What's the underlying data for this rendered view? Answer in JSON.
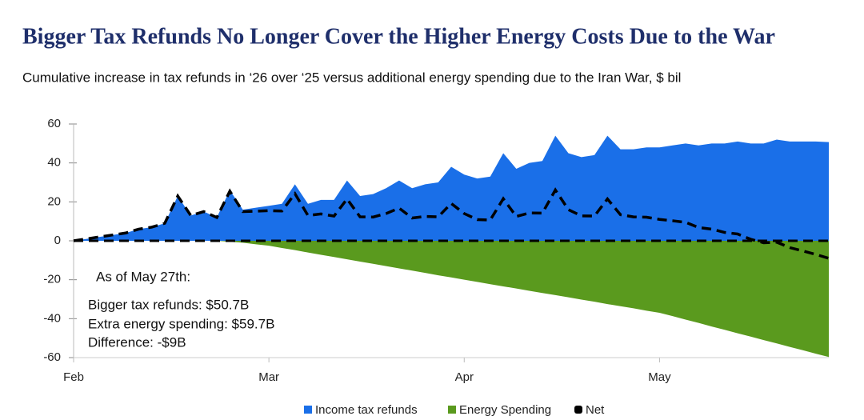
{
  "chart_data": {
    "type": "area",
    "title": "Bigger Tax Refunds No Longer Cover the Higher Energy Costs Due to the War",
    "subtitle": "Cumulative increase in tax refunds in ‘26 over ‘25 versus additional energy spending due to the Iran War, $ bil",
    "categories": [
      "Feb",
      null,
      null,
      null,
      null,
      null,
      null,
      null,
      null,
      null,
      null,
      null,
      null,
      null,
      null,
      "Mar",
      null,
      null,
      null,
      null,
      null,
      null,
      null,
      null,
      null,
      null,
      null,
      null,
      null,
      null,
      "Apr",
      null,
      null,
      null,
      null,
      null,
      null,
      null,
      null,
      null,
      null,
      null,
      null,
      null,
      null,
      "May",
      null,
      null,
      null,
      null,
      null,
      null,
      null,
      null,
      null,
      null,
      null,
      null,
      null
    ],
    "series": [
      {
        "name": "Income tax refunds",
        "color": "#1a6fe8",
        "style": "area",
        "values": [
          0,
          1,
          2,
          3,
          4,
          6,
          7,
          9,
          23,
          13,
          15,
          12,
          26,
          16,
          17,
          18,
          19,
          29,
          19,
          21,
          21,
          31,
          23,
          24,
          27,
          31,
          27,
          29,
          30,
          38,
          34,
          32,
          33,
          45,
          37,
          40,
          41,
          54,
          45,
          43,
          44,
          54,
          47,
          47,
          48,
          48,
          49,
          50,
          49,
          50,
          50,
          51,
          50,
          50,
          52,
          51,
          51,
          51,
          50.7
        ]
      },
      {
        "name": "Energy Spending",
        "color": "#5a9a1e",
        "style": "area",
        "values": [
          0,
          0,
          0,
          0,
          0,
          0,
          0,
          0,
          0,
          0,
          0,
          0,
          -0.5,
          -1,
          -1.8,
          -2.5,
          -3.7,
          -4.8,
          -6,
          -7.2,
          -8.3,
          -9.5,
          -10.7,
          -11.8,
          -13,
          -14.2,
          -15.3,
          -16.5,
          -17.7,
          -18.8,
          -20,
          -21.1,
          -22.3,
          -23.4,
          -24.5,
          -25.7,
          -26.8,
          -27.9,
          -29,
          -30.2,
          -31.3,
          -32.5,
          -33.6,
          -34.7,
          -35.9,
          -37,
          -38.7,
          -40.5,
          -42.2,
          -44,
          -45.7,
          -47.5,
          -49.2,
          -51,
          -52.7,
          -54.5,
          -56.2,
          -58,
          -59.7
        ]
      },
      {
        "name": "Net",
        "color": "#000000",
        "style": "dashed-line",
        "values": [
          0,
          1,
          2,
          3,
          4,
          6,
          7,
          9,
          23,
          13,
          15,
          12,
          25.5,
          15,
          15.2,
          15.5,
          15.3,
          24.2,
          13,
          13.8,
          12.7,
          21.5,
          12.3,
          12.2,
          14,
          16.8,
          11.7,
          12.5,
          12.3,
          19.2,
          14,
          10.9,
          10.7,
          21.6,
          12.5,
          14.3,
          14.2,
          26.1,
          16,
          12.8,
          12.7,
          21.5,
          13.4,
          12.3,
          12.1,
          11,
          10.3,
          9.5,
          6.8,
          6,
          4.3,
          3.5,
          0.8,
          -1,
          -0.7,
          -3.5,
          -5.2,
          -7,
          -9
        ]
      }
    ],
    "ylim": [
      -60,
      60
    ],
    "yticks": [
      -60,
      -40,
      -20,
      0,
      20,
      40,
      60
    ],
    "annotations": [
      "As of May 27th:",
      "Bigger tax refunds: $50.7B",
      "Extra energy spending: $59.7B",
      "Difference: -$9B"
    ],
    "legend": "bottom"
  }
}
